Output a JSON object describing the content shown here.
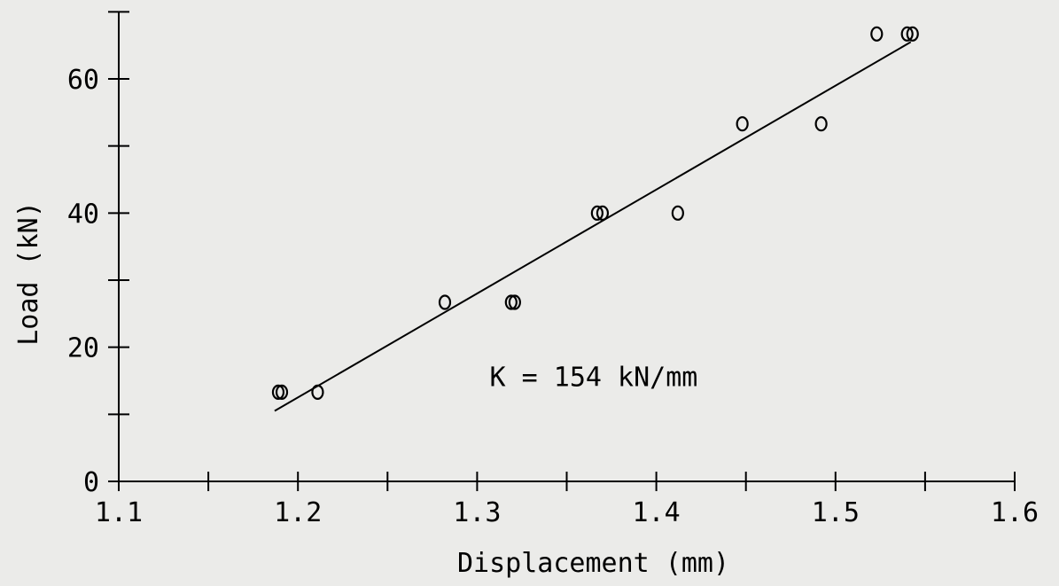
{
  "chart_data": {
    "type": "scatter",
    "xlabel": "Displacement (mm)",
    "ylabel": "Load (kN)",
    "xlim": [
      1.1,
      1.6
    ],
    "ylim": [
      0,
      70
    ],
    "x_ticks": [
      1.1,
      1.2,
      1.3,
      1.4,
      1.5,
      1.6
    ],
    "x_tick_labels": [
      "1.1",
      "1.2",
      "1.3",
      "1.4",
      "1.5",
      "1.6"
    ],
    "y_ticks": [
      0,
      20,
      40,
      60
    ],
    "y_tick_labels": [
      "0",
      "20",
      "40",
      "60"
    ],
    "grid": false,
    "colors": {
      "background": "#ebebe9",
      "ink": "#000000"
    },
    "points": [
      {
        "x": 1.189,
        "y": 13.3
      },
      {
        "x": 1.191,
        "y": 13.3
      },
      {
        "x": 1.211,
        "y": 13.3
      },
      {
        "x": 1.282,
        "y": 26.7
      },
      {
        "x": 1.319,
        "y": 26.7
      },
      {
        "x": 1.321,
        "y": 26.7
      },
      {
        "x": 1.367,
        "y": 40.0
      },
      {
        "x": 1.37,
        "y": 40.0
      },
      {
        "x": 1.412,
        "y": 40.0
      },
      {
        "x": 1.448,
        "y": 53.3
      },
      {
        "x": 1.492,
        "y": 53.3
      },
      {
        "x": 1.523,
        "y": 66.7
      },
      {
        "x": 1.54,
        "y": 66.7
      },
      {
        "x": 1.543,
        "y": 66.7
      }
    ],
    "fit_line": {
      "start": {
        "x": 1.187,
        "y": 10.5
      },
      "end": {
        "x": 1.542,
        "y": 65.5
      }
    },
    "annotation": {
      "text": "K = 154 kN/mm",
      "x": 1.307,
      "y": 15.5
    }
  }
}
